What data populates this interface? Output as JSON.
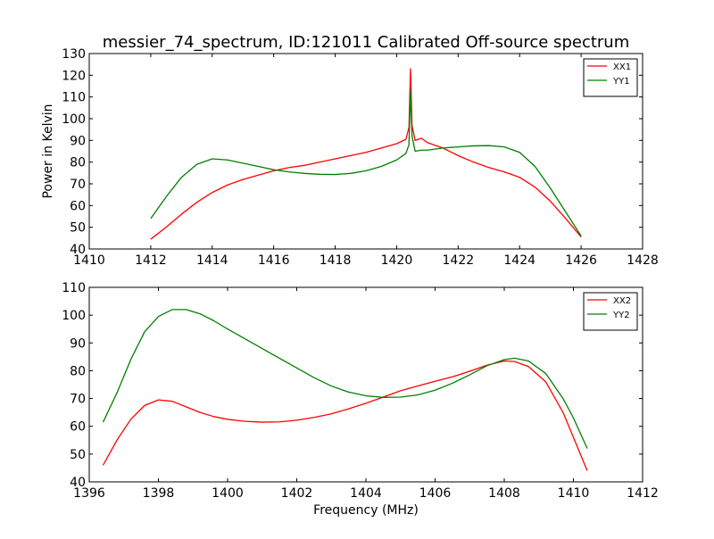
{
  "figure": {
    "title": "messier_74_spectrum, ID:121011 Calibrated Off-source spectrum",
    "colors": {
      "axes": "#000000",
      "background": "#ffffff"
    }
  },
  "chart_data": [
    {
      "type": "line",
      "title": "messier_74_spectrum, ID:121011 Calibrated Off-source spectrum",
      "xlabel": "",
      "ylabel": "Power in Kelvin",
      "xlim": [
        1410,
        1428
      ],
      "ylim": [
        40,
        130
      ],
      "xticks": [
        1410,
        1412,
        1414,
        1416,
        1418,
        1420,
        1422,
        1424,
        1426,
        1428
      ],
      "yticks": [
        40,
        50,
        60,
        70,
        80,
        90,
        100,
        110,
        120,
        130
      ],
      "grid": false,
      "legend": "top-right",
      "series": [
        {
          "name": "XX1",
          "color": "#ff0000",
          "points": [
            [
              1412.0,
              44.5
            ],
            [
              1412.5,
              50
            ],
            [
              1413.0,
              56
            ],
            [
              1413.5,
              61.5
            ],
            [
              1414.0,
              66
            ],
            [
              1414.5,
              69.5
            ],
            [
              1415.0,
              72
            ],
            [
              1415.5,
              74
            ],
            [
              1416.0,
              76
            ],
            [
              1416.5,
              77.5
            ],
            [
              1417.0,
              78.5
            ],
            [
              1417.5,
              80
            ],
            [
              1418.0,
              81.5
            ],
            [
              1418.5,
              83
            ],
            [
              1419.0,
              84.5
            ],
            [
              1419.5,
              86.5
            ],
            [
              1420.0,
              88.5
            ],
            [
              1420.3,
              90.5
            ],
            [
              1420.4,
              96
            ],
            [
              1420.45,
              123
            ],
            [
              1420.5,
              97
            ],
            [
              1420.6,
              90
            ],
            [
              1420.8,
              91
            ],
            [
              1421.0,
              89
            ],
            [
              1421.5,
              86.5
            ],
            [
              1422.0,
              83
            ],
            [
              1422.5,
              80
            ],
            [
              1423.0,
              77.5
            ],
            [
              1423.5,
              75.5
            ],
            [
              1424.0,
              73
            ],
            [
              1424.5,
              68.5
            ],
            [
              1425.0,
              62
            ],
            [
              1425.5,
              54
            ],
            [
              1426.0,
              45.5
            ]
          ]
        },
        {
          "name": "YY1",
          "color": "#008000",
          "points": [
            [
              1412.0,
              54
            ],
            [
              1412.5,
              64
            ],
            [
              1413.0,
              73
            ],
            [
              1413.5,
              79
            ],
            [
              1414.0,
              81.5
            ],
            [
              1414.5,
              81
            ],
            [
              1415.0,
              79.5
            ],
            [
              1415.5,
              78
            ],
            [
              1416.0,
              76.5
            ],
            [
              1416.5,
              75.5
            ],
            [
              1417.0,
              74.8
            ],
            [
              1417.5,
              74.4
            ],
            [
              1418.0,
              74.3
            ],
            [
              1418.5,
              74.8
            ],
            [
              1419.0,
              76
            ],
            [
              1419.5,
              78
            ],
            [
              1420.0,
              81
            ],
            [
              1420.3,
              84
            ],
            [
              1420.4,
              88
            ],
            [
              1420.45,
              113
            ],
            [
              1420.5,
              92
            ],
            [
              1420.6,
              85
            ],
            [
              1420.8,
              85.5
            ],
            [
              1421.0,
              85.5
            ],
            [
              1421.5,
              86.5
            ],
            [
              1422.0,
              87
            ],
            [
              1422.5,
              87.5
            ],
            [
              1423.0,
              87.6
            ],
            [
              1423.5,
              87
            ],
            [
              1424.0,
              84.5
            ],
            [
              1424.5,
              78
            ],
            [
              1425.0,
              68
            ],
            [
              1425.5,
              57
            ],
            [
              1426.0,
              46
            ]
          ]
        }
      ]
    },
    {
      "type": "line",
      "title": "",
      "xlabel": "Frequency (MHz)",
      "ylabel": "",
      "xlim": [
        1396,
        1412
      ],
      "ylim": [
        40,
        110
      ],
      "xticks": [
        1396,
        1398,
        1400,
        1402,
        1404,
        1406,
        1408,
        1410,
        1412
      ],
      "yticks": [
        40,
        50,
        60,
        70,
        80,
        90,
        100,
        110
      ],
      "grid": false,
      "legend": "top-right",
      "series": [
        {
          "name": "XX2",
          "color": "#ff0000",
          "points": [
            [
              1396.4,
              46
            ],
            [
              1396.8,
              55
            ],
            [
              1397.2,
              62.5
            ],
            [
              1397.6,
              67.5
            ],
            [
              1398.0,
              69.5
            ],
            [
              1398.4,
              69
            ],
            [
              1398.8,
              67
            ],
            [
              1399.2,
              65
            ],
            [
              1399.6,
              63.5
            ],
            [
              1400.0,
              62.5
            ],
            [
              1400.5,
              61.8
            ],
            [
              1401.0,
              61.5
            ],
            [
              1401.5,
              61.6
            ],
            [
              1402.0,
              62.2
            ],
            [
              1402.5,
              63.2
            ],
            [
              1403.0,
              64.5
            ],
            [
              1403.5,
              66.3
            ],
            [
              1404.0,
              68.3
            ],
            [
              1404.5,
              70.5
            ],
            [
              1405.0,
              72.8
            ],
            [
              1405.5,
              74.5
            ],
            [
              1406.0,
              76.2
            ],
            [
              1406.5,
              77.8
            ],
            [
              1407.0,
              79.8
            ],
            [
              1407.5,
              82
            ],
            [
              1408.0,
              83.5
            ],
            [
              1408.3,
              83.3
            ],
            [
              1408.7,
              81.5
            ],
            [
              1409.2,
              76
            ],
            [
              1409.7,
              65
            ],
            [
              1410.0,
              56
            ],
            [
              1410.4,
              44
            ]
          ]
        },
        {
          "name": "YY2",
          "color": "#008000",
          "points": [
            [
              1396.4,
              61.5
            ],
            [
              1396.8,
              72
            ],
            [
              1397.2,
              84
            ],
            [
              1397.6,
              94
            ],
            [
              1398.0,
              99.5
            ],
            [
              1398.4,
              102
            ],
            [
              1398.8,
              102
            ],
            [
              1399.2,
              100.5
            ],
            [
              1399.6,
              98
            ],
            [
              1400.0,
              95
            ],
            [
              1400.5,
              91.5
            ],
            [
              1401.0,
              88
            ],
            [
              1401.5,
              84.5
            ],
            [
              1402.0,
              81
            ],
            [
              1402.5,
              77.5
            ],
            [
              1403.0,
              74.5
            ],
            [
              1403.5,
              72.3
            ],
            [
              1404.0,
              71
            ],
            [
              1404.5,
              70.4
            ],
            [
              1405.0,
              70.5
            ],
            [
              1405.5,
              71.3
            ],
            [
              1406.0,
              73
            ],
            [
              1406.5,
              75.5
            ],
            [
              1407.0,
              78.5
            ],
            [
              1407.5,
              81.8
            ],
            [
              1408.0,
              84
            ],
            [
              1408.3,
              84.5
            ],
            [
              1408.7,
              83.5
            ],
            [
              1409.2,
              79
            ],
            [
              1409.7,
              70
            ],
            [
              1410.0,
              63
            ],
            [
              1410.4,
              52
            ]
          ]
        }
      ]
    }
  ]
}
